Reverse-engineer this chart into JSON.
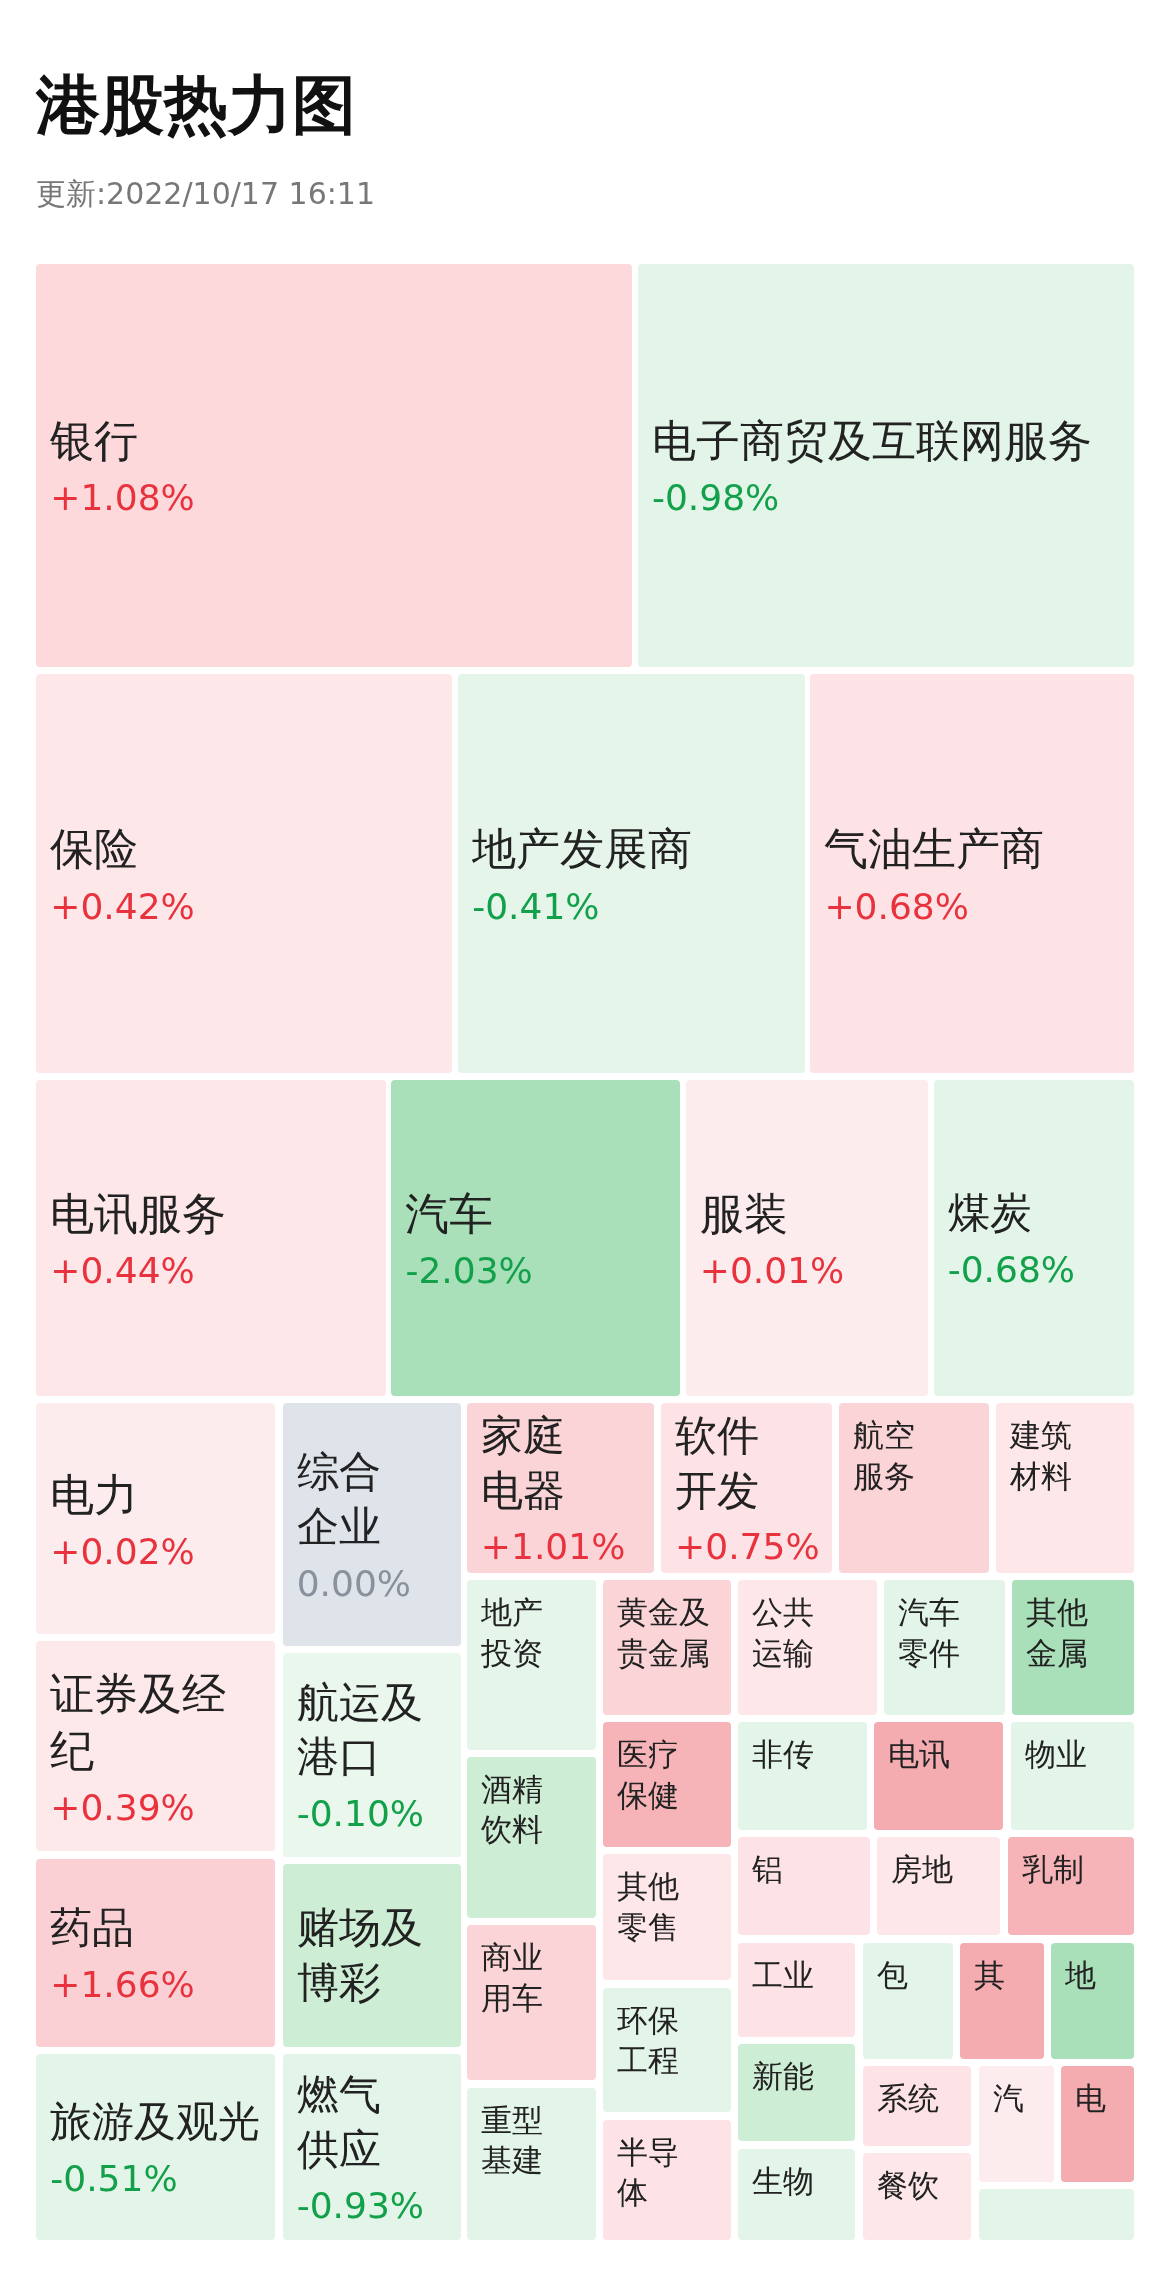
{
  "chart_data": {
    "type": "other",
    "title": "港股热力图",
    "subtitle": "更新:2022/10/17 16:11",
    "categories": [
      "银行",
      "电子商贸及互联网服务",
      "保险",
      "地产发展商",
      "气油生产商",
      "电讯服务",
      "汽车",
      "服装",
      "煤炭",
      "电力",
      "证券及经纪",
      "药品",
      "旅游及观光",
      "综合企业",
      "航运及港口",
      "赌场及博彩",
      "燃气供应",
      "家庭电器",
      "软件开发",
      "航空服务",
      "建筑材料",
      "地产投资",
      "酒精饮料",
      "商业用车",
      "重型基建",
      "黄金及贵金属",
      "医疗保健",
      "其他零售",
      "环保工程",
      "半导体",
      "公共运输",
      "汽车零件",
      "其他金属",
      "非传",
      "电讯",
      "物业",
      "铝",
      "房地",
      "乳制",
      "工业",
      "包",
      "其",
      "地",
      "新能",
      "生物",
      "系统",
      "餐饮",
      "汽",
      "电",
      null
    ],
    "values": [
      1.08,
      -0.98,
      0.42,
      -0.41,
      0.68,
      0.44,
      -2.03,
      0.01,
      -0.68,
      0.02,
      0.39,
      1.66,
      -0.51,
      0.0,
      -0.1,
      null,
      -0.93,
      1.01,
      0.75,
      null,
      null,
      null,
      null,
      null,
      null,
      null,
      null,
      null,
      null,
      null,
      null,
      null,
      null,
      null,
      null,
      null,
      null,
      null,
      null,
      null,
      null,
      null,
      null,
      null,
      null,
      null,
      null,
      null,
      null,
      null
    ],
    "value_labels": [
      "+1.08%",
      "-0.98%",
      "+0.42%",
      "-0.41%",
      "+0.68%",
      "+0.44%",
      "-2.03%",
      "+0.01%",
      "-0.68%",
      "+0.02%",
      "+0.39%",
      "+1.66%",
      "-0.51%",
      "0.00%",
      "-0.10%",
      null,
      "-0.93%",
      "+1.01%",
      "+0.75%",
      null,
      null,
      null,
      null,
      null,
      null,
      null,
      null,
      null,
      null,
      null,
      null,
      null,
      null,
      null,
      null,
      null,
      null,
      null,
      null,
      null,
      null,
      null,
      null,
      null,
      null,
      null,
      null,
      null,
      null,
      null
    ],
    "colors": [
      "#fdd9dc",
      "#e3f5e8",
      "#fde7e8",
      "#e5f5e9",
      "#fde3e5",
      "#fde7e8",
      "#a9e0b9",
      "#fdeced",
      "#e3f5e8",
      "#fdeced",
      "#fde8ea",
      "#fbd0d4",
      "#e3f5e8",
      "#dfe3ea",
      "#eaf7ed",
      "#cdeed5",
      "#e3f5e8",
      "#fbd4d7",
      "#fde3e5",
      "#fbd4d7",
      "#fde7e8",
      "#e5f5e9",
      "#cdeed5",
      "#fbd4d7",
      "#e3f5e8",
      "#fbd4d7",
      "#f7b4b8",
      "#fde7e8",
      "#e3f5e8",
      "#fde3e5",
      "#fde7e8",
      "#e3f5e8",
      "#a9e0b9",
      "#e3f5e8",
      "#f5acb1",
      "#e3f5e8",
      "#fde3e5",
      "#fde7e8",
      "#f7b4b8",
      "#fde3e5",
      "#e3f5e8",
      "#f5acb1",
      "#a9e0b9",
      "#cdeed5",
      "#e3f5e8",
      "#fde3e5",
      "#fde7e8",
      "#fdeced",
      "#f5acb1",
      "#e3f5e8"
    ]
  }
}
